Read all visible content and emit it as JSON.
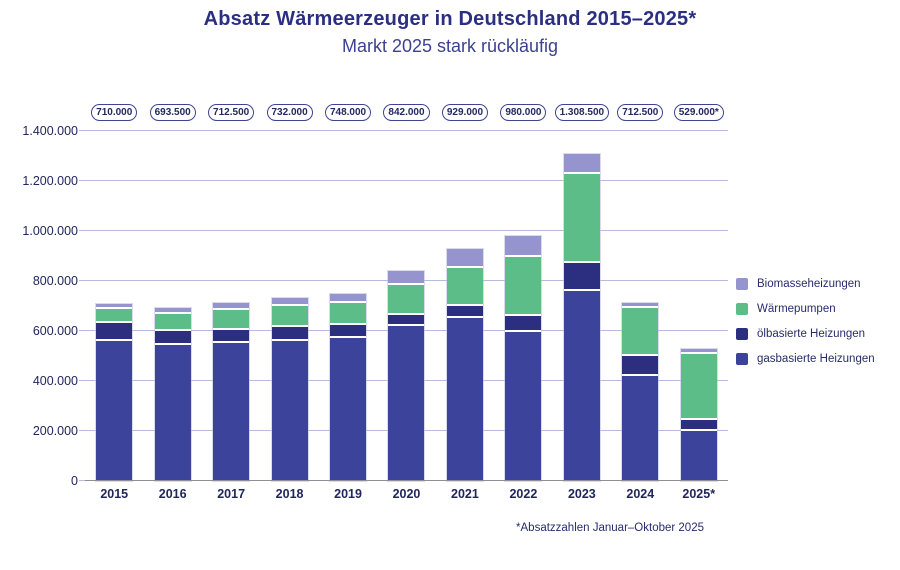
{
  "header": {
    "title": "Absatz Wärmeerzeuger in Deutschland 2015–2025*",
    "subtitle": "Markt 2025 stark rückläufig"
  },
  "footnote": "*Absatzzahlen Januar–Oktober 2025",
  "colors": {
    "title_text": "#2b2f82",
    "axis_text": "#20265c",
    "gridline": "#b7badd",
    "axis_line": "#8f8f93",
    "pill_border": "#3d4492",
    "gas": "#3b439a",
    "oil": "#2c2f7f",
    "heatpump": "#5cbd89",
    "biomass": "#9594ce"
  },
  "chart_data": {
    "type": "bar",
    "stacked": true,
    "title": "Absatz Wärmeerzeuger in Deutschland 2015–2025*",
    "subtitle": "Markt 2025 stark rückläufig",
    "xlabel": "",
    "ylabel": "",
    "categories": [
      "2015",
      "2016",
      "2017",
      "2018",
      "2019",
      "2020",
      "2021",
      "2022",
      "2023",
      "2024",
      "2025*"
    ],
    "series": [
      {
        "name": "gasbasierte Heizungen",
        "color": "#3b439a",
        "values": [
          560000,
          543500,
          551000,
          561000,
          573000,
          618500,
          652500,
          598000,
          759500,
          418500,
          200000
        ]
      },
      {
        "name": "ölbasierte Heizungen",
        "color": "#2c2f7f",
        "values": [
          72000,
          56500,
          54000,
          54500,
          52000,
          44500,
          46000,
          62000,
          112000,
          81500,
          45000
        ]
      },
      {
        "name": "Wärmepumpen",
        "color": "#5cbd89",
        "values": [
          57000,
          66500,
          78000,
          84000,
          86000,
          120000,
          154000,
          236000,
          356000,
          193000,
          264000
        ]
      },
      {
        "name": "Biomasseheizungen",
        "color": "#9594ce",
        "values": [
          21000,
          27000,
          29500,
          32500,
          37000,
          59000,
          76500,
          84000,
          81000,
          19500,
          20000
        ]
      }
    ],
    "totals": [
      710000,
      693500,
      712500,
      732000,
      748000,
      842000,
      929000,
      980000,
      1308500,
      712500,
      529000
    ],
    "totals_labels": [
      "710.000",
      "693.500",
      "712.500",
      "732.000",
      "748.000",
      "842.000",
      "929.000",
      "980.000",
      "1.308.500",
      "712.500",
      "529.000*"
    ],
    "y_axis": {
      "min": 0,
      "max": 1400000,
      "step": 200000,
      "tick_labels_top_to_bottom": [
        "1.400.000",
        "1.200.000",
        "1.000.000",
        "800.000",
        "600.000",
        "400.000",
        "200.000",
        "0"
      ]
    },
    "grid": true,
    "legend_position": "right",
    "legend_order_top_to_bottom": [
      "Biomasseheizungen",
      "Wärmepumpen",
      "ölbasierte Heizungen",
      "gasbasierte Heizungen"
    ]
  }
}
